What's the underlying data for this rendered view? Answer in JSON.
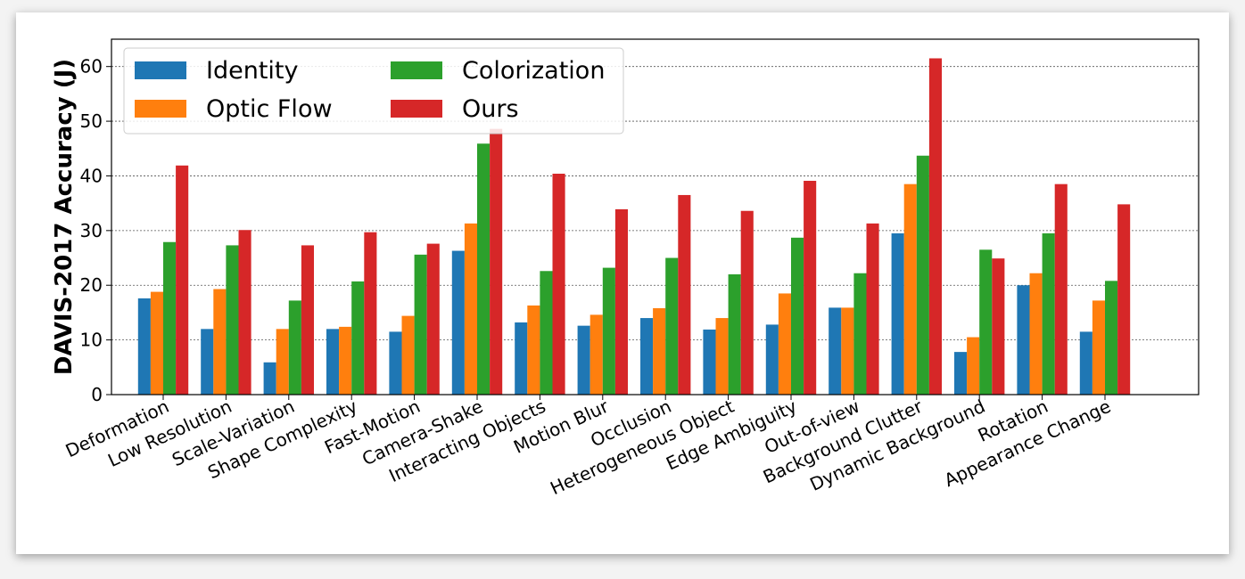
{
  "chart_data": {
    "type": "bar",
    "title": "",
    "xlabel": "",
    "ylabel": "DAVIS-2017 Accuracy (J)",
    "ylim": [
      0,
      65
    ],
    "yticks": [
      0,
      10,
      20,
      30,
      40,
      50,
      60
    ],
    "grid": true,
    "legend_position": "top-left",
    "categories": [
      "Deformation",
      "Low Resolution",
      "Scale-Variation",
      "Shape Complexity",
      "Fast-Motion",
      "Camera-Shake",
      "Interacting Objects",
      "Motion Blur",
      "Occlusion",
      "Heterogeneous Object",
      "Edge Ambiguity",
      "Out-of-view",
      "Background Clutter",
      "Dynamic Background",
      "Rotation",
      "Appearance Change"
    ],
    "series": [
      {
        "name": "Identity",
        "color": "#1f77b4",
        "values": [
          17.6,
          12.0,
          5.9,
          12.0,
          11.5,
          26.3,
          13.2,
          12.6,
          14.0,
          11.9,
          12.8,
          15.9,
          29.5,
          7.8,
          20.0,
          11.5
        ]
      },
      {
        "name": "Optic Flow",
        "color": "#ff7f0e",
        "values": [
          18.8,
          19.3,
          12.0,
          12.4,
          14.4,
          31.3,
          16.3,
          14.6,
          15.8,
          14.0,
          18.5,
          15.9,
          38.5,
          10.5,
          22.2,
          17.2
        ]
      },
      {
        "name": "Colorization",
        "color": "#2ca02c",
        "values": [
          27.9,
          27.3,
          17.2,
          20.7,
          25.6,
          45.9,
          22.6,
          23.2,
          25.0,
          22.0,
          28.7,
          22.2,
          43.7,
          26.5,
          29.5,
          20.8
        ]
      },
      {
        "name": "Ours",
        "color": "#d62728",
        "values": [
          41.9,
          30.1,
          27.3,
          29.7,
          27.6,
          48.6,
          40.4,
          33.9,
          36.5,
          33.6,
          39.1,
          31.3,
          61.5,
          24.9,
          38.5,
          34.8
        ]
      }
    ]
  }
}
